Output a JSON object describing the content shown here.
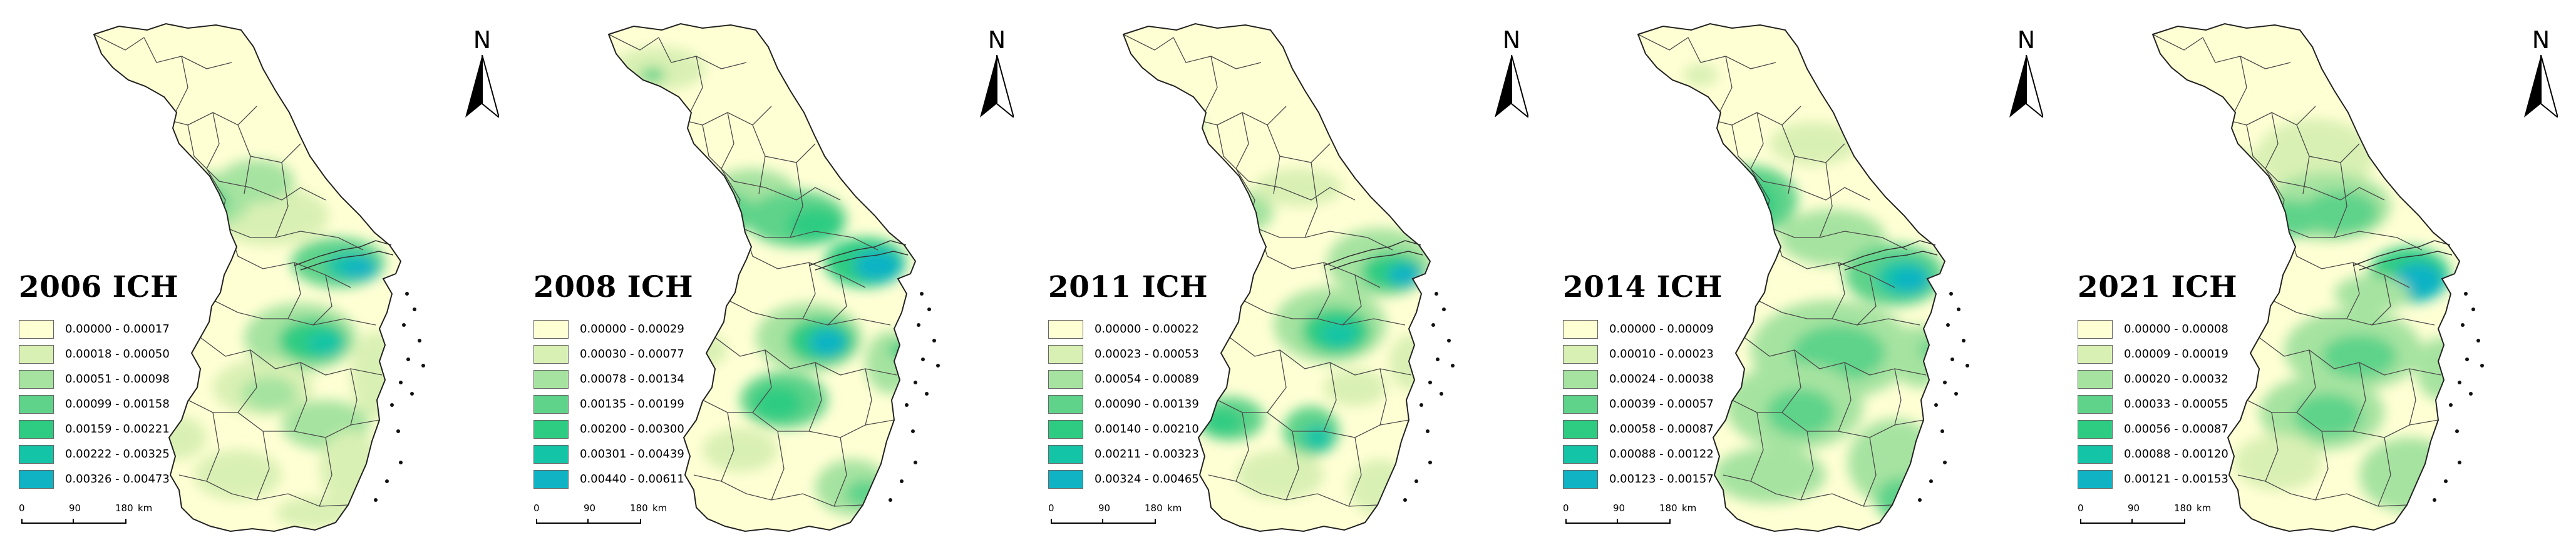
{
  "colors": {
    "class1": "#ffffd4",
    "class2": "#d9f0b4",
    "class3": "#a6e3a0",
    "class4": "#5fd38a",
    "class5": "#2ecc82",
    "class6": "#14c4a6",
    "class7": "#0fb3c4",
    "boundary": "#4a4a4a"
  },
  "north": {
    "label": "N"
  },
  "scale": {
    "ticks": [
      "0",
      "90",
      "180",
      "km"
    ]
  },
  "panels": [
    {
      "title": "2006 ICH",
      "legend": [
        "0.00000 - 0.00017",
        "0.00018 - 0.00050",
        "0.00051 - 0.00098",
        "0.00099 - 0.00158",
        "0.00159 - 0.00221",
        "0.00222 - 0.00325",
        "0.00326 - 0.00473"
      ]
    },
    {
      "title": "2008 ICH",
      "legend": [
        "0.00000 - 0.00029",
        "0.00030 - 0.00077",
        "0.00078 - 0.00134",
        "0.00135 - 0.00199",
        "0.00200 - 0.00300",
        "0.00301 - 0.00439",
        "0.00440 - 0.00611"
      ]
    },
    {
      "title": "2011 ICH",
      "legend": [
        "0.00000 - 0.00022",
        "0.00023 - 0.00053",
        "0.00054 - 0.00089",
        "0.00090 - 0.00139",
        "0.00140 - 0.00210",
        "0.00211 - 0.00323",
        "0.00324 - 0.00465"
      ]
    },
    {
      "title": "2014 ICH",
      "legend": [
        "0.00000 - 0.00009",
        "0.00010 - 0.00023",
        "0.00024 - 0.00038",
        "0.00039 - 0.00057",
        "0.00058 - 0.00087",
        "0.00088 - 0.00122",
        "0.00123 - 0.00157"
      ]
    },
    {
      "title": "2021 ICH",
      "legend": [
        "0.00000 - 0.00008",
        "0.00009 - 0.00019",
        "0.00020 - 0.00032",
        "0.00033 - 0.00055",
        "0.00056 - 0.00087",
        "0.00088 - 0.00120",
        "0.00121 - 0.00153"
      ]
    }
  ]
}
